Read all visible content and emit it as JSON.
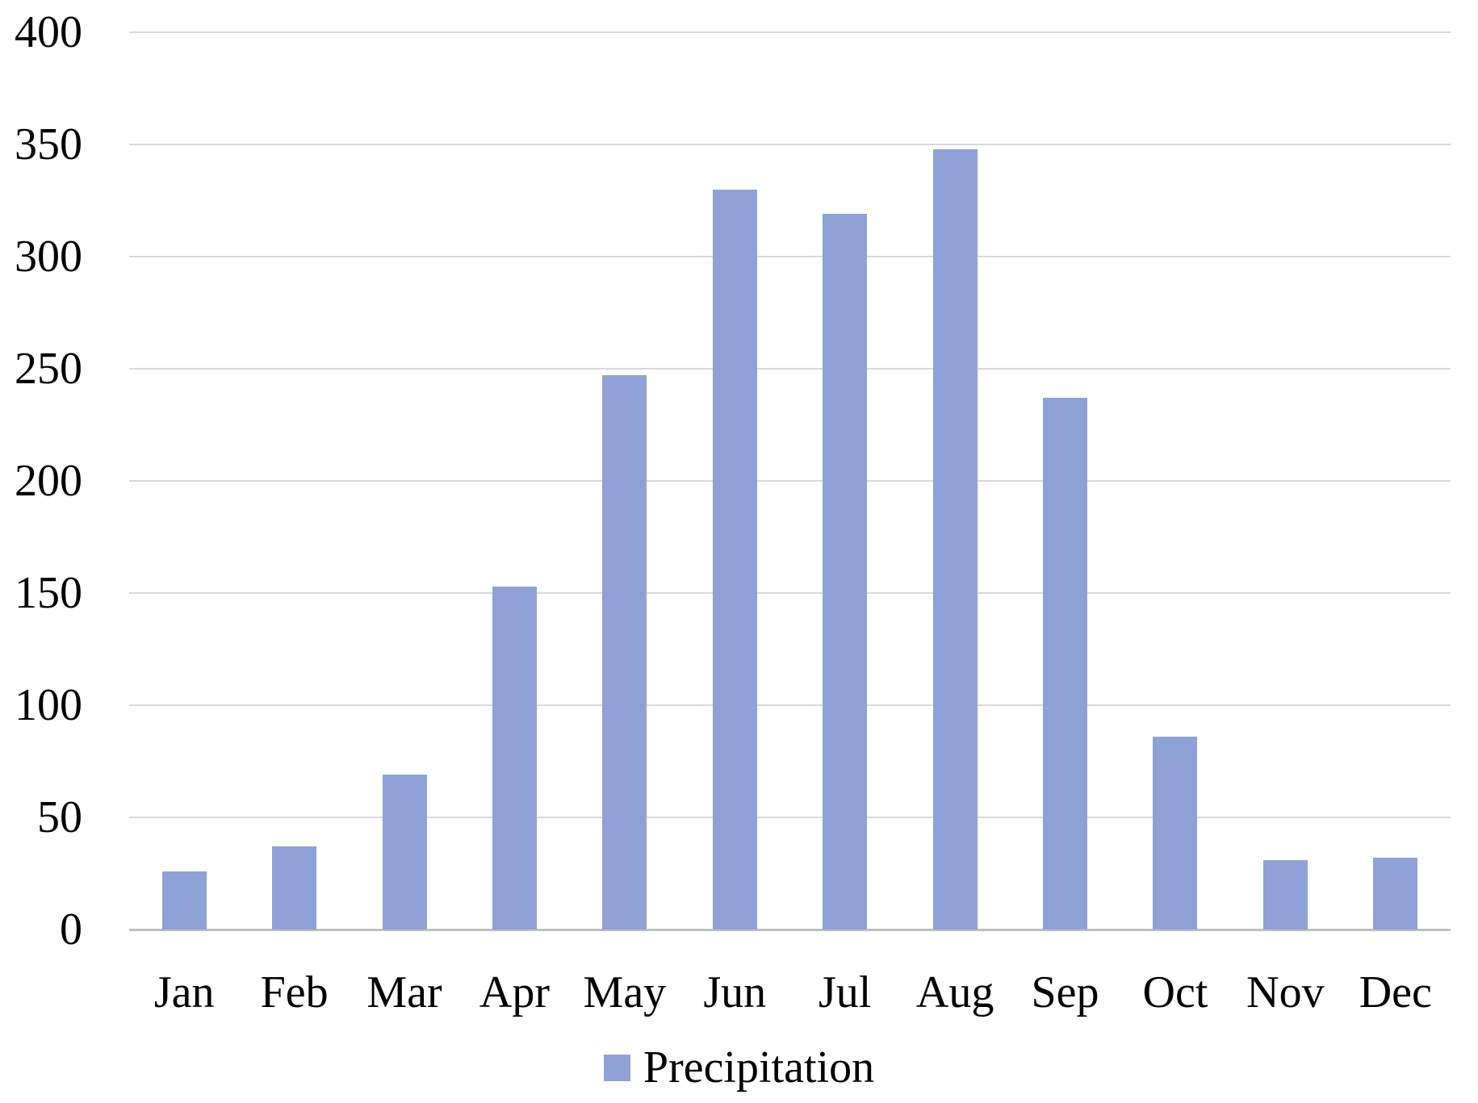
{
  "chart_data": {
    "type": "bar",
    "title": "",
    "categories": [
      "Jan",
      "Feb",
      "Mar",
      "Apr",
      "May",
      "Jun",
      "Jul",
      "Aug",
      "Sep",
      "Oct",
      "Nov",
      "Dec"
    ],
    "series": [
      {
        "name": "Precipitation",
        "values": [
          26,
          37,
          69,
          153,
          247,
          330,
          319,
          348,
          237,
          86,
          31,
          32
        ]
      }
    ],
    "xlabel": "",
    "ylabel": "",
    "ylim": [
      0,
      400
    ],
    "yticks": [
      400,
      350,
      300,
      250,
      200,
      150,
      100,
      50,
      0
    ],
    "grid": "horizontal",
    "legend": {
      "position": "bottom",
      "entries": [
        "Precipitation"
      ]
    },
    "colors": {
      "bar": "#8EA2D8",
      "gridline": "#D9D9D9",
      "axis_line": "#BFBFBF",
      "text": "#000000",
      "background": "#FFFFFF"
    }
  }
}
